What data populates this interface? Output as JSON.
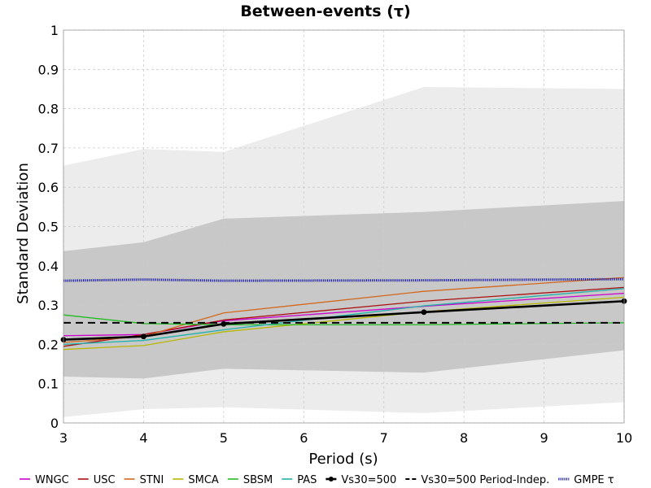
{
  "chart_data": {
    "type": "line",
    "title": "Between-events (τ)",
    "xlabel": "Period (s)",
    "ylabel": "Standard Deviation",
    "xlim": [
      3,
      10
    ],
    "ylim": [
      0,
      1
    ],
    "xticks": [
      3,
      4,
      5,
      6,
      7,
      8,
      9,
      10
    ],
    "yticks": [
      0,
      0.1,
      0.2,
      0.3,
      0.4,
      0.5,
      0.6,
      0.7,
      0.8,
      0.9,
      1
    ],
    "grid": true,
    "legend_position": "bottom",
    "bands": [
      {
        "color": "#ececec",
        "x": [
          3,
          4,
          5,
          7.5,
          10
        ],
        "lower": [
          0.015,
          0.035,
          0.04,
          0.025,
          0.053
        ],
        "upper": [
          0.655,
          0.697,
          0.69,
          0.855,
          0.85
        ]
      },
      {
        "color": "#c8c8c8",
        "x": [
          3,
          4,
          5,
          7.5,
          10
        ],
        "lower": [
          0.118,
          0.113,
          0.138,
          0.128,
          0.185
        ],
        "upper": [
          0.437,
          0.46,
          0.52,
          0.537,
          0.565
        ]
      }
    ],
    "series": [
      {
        "name": "WNGC",
        "color": "#cc00cc",
        "x": [
          3,
          4,
          5,
          7.5,
          10
        ],
        "values": [
          0.222,
          0.225,
          0.26,
          0.297,
          0.33
        ],
        "style": "solid"
      },
      {
        "name": "USC",
        "color": "#aa1111",
        "x": [
          3,
          4,
          5,
          7.5,
          10
        ],
        "values": [
          0.195,
          0.225,
          0.262,
          0.31,
          0.345
        ],
        "style": "solid"
      },
      {
        "name": "STNI",
        "color": "#d2691e",
        "x": [
          3,
          4,
          5,
          7.5,
          10
        ],
        "values": [
          0.205,
          0.22,
          0.28,
          0.335,
          0.37
        ],
        "style": "solid"
      },
      {
        "name": "SMCA",
        "color": "#b8b800",
        "x": [
          3,
          4,
          5,
          7.5,
          10
        ],
        "values": [
          0.187,
          0.197,
          0.232,
          0.283,
          0.32
        ],
        "style": "solid"
      },
      {
        "name": "SBSM",
        "color": "#22bb22",
        "x": [
          3,
          4,
          5,
          7.5,
          10
        ],
        "values": [
          0.275,
          0.253,
          0.25,
          0.25,
          0.255
        ],
        "style": "solid"
      },
      {
        "name": "PAS",
        "color": "#20b2aa",
        "x": [
          3,
          4,
          5,
          7.5,
          10
        ],
        "values": [
          0.2,
          0.21,
          0.237,
          0.298,
          0.342
        ],
        "style": "solid"
      },
      {
        "name": "Vs30=500",
        "color": "#000000",
        "x": [
          3,
          4,
          5,
          7.5,
          10
        ],
        "values": [
          0.212,
          0.22,
          0.252,
          0.282,
          0.31
        ],
        "style": "solid-marker"
      },
      {
        "name": "Vs30=500 Period-Indep.",
        "color": "#000000",
        "x": [
          3,
          10
        ],
        "values": [
          0.255,
          0.255
        ],
        "style": "dashed"
      },
      {
        "name": "GMPE τ",
        "color": "#1a1aaa",
        "x": [
          3,
          4,
          5,
          7.5,
          10
        ],
        "values": [
          0.362,
          0.365,
          0.362,
          0.363,
          0.366
        ],
        "style": "dotted"
      }
    ]
  }
}
